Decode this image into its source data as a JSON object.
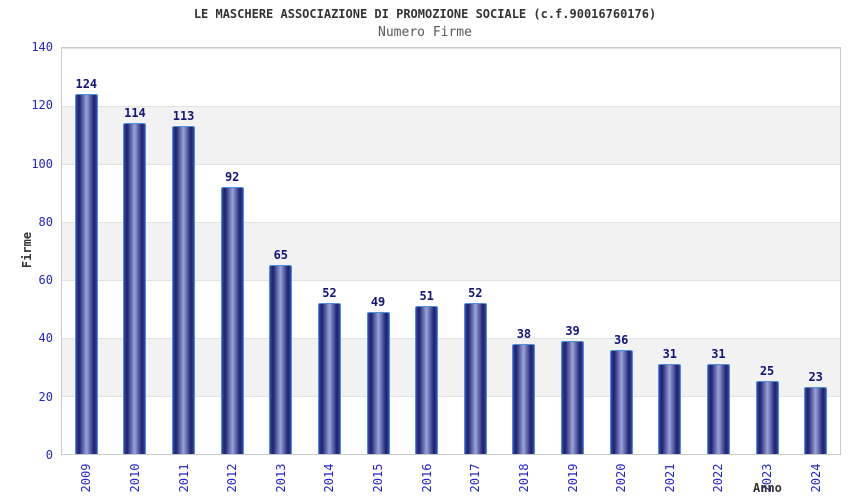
{
  "chart_data": {
    "type": "bar",
    "title": "LE MASCHERE ASSOCIAZIONE DI PROMOZIONE SOCIALE (c.f.90016760176)",
    "subtitle": "Numero Firme",
    "categories": [
      "2009",
      "2010",
      "2011",
      "2012",
      "2013",
      "2014",
      "2015",
      "2016",
      "2017",
      "2018",
      "2019",
      "2020",
      "2021",
      "2022",
      "2023",
      "2024"
    ],
    "values": [
      124,
      114,
      113,
      92,
      65,
      52,
      49,
      51,
      52,
      38,
      39,
      36,
      31,
      31,
      25,
      23
    ],
    "xlabel": "Anno",
    "ylabel": "Firme",
    "ylim": [
      0,
      140
    ],
    "yticks": [
      0,
      20,
      40,
      60,
      80,
      100,
      120,
      140
    ],
    "legend": "none",
    "grid": "alternating horizontal bands every 20 units",
    "colors": {
      "bar_edge": "#1a1f70",
      "bar_center": "#9aa4d8",
      "bar_outline": "#4e8fd9",
      "axis_tick_text": "#2525cc",
      "value_label_text": "#14147a",
      "band_gray": "#f2f2f2",
      "plot_border": "#c9c9c9",
      "title_text": "#333333",
      "subtitle_text": "#5a5a5a"
    }
  }
}
